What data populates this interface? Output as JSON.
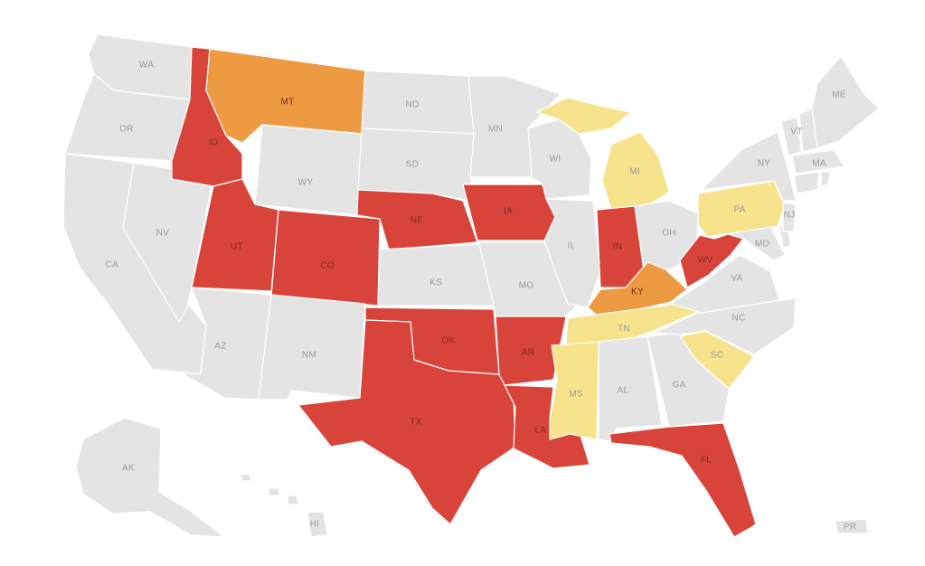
{
  "colors": {
    "red": "#d9443a",
    "orange": "#ee9a43",
    "yellow": "#f7e38c",
    "gray": "#e4e4e4",
    "border": "#ffffff"
  },
  "states": {
    "WA": {
      "label": "WA",
      "category": "gray"
    },
    "OR": {
      "label": "OR",
      "category": "gray"
    },
    "CA": {
      "label": "CA",
      "category": "gray"
    },
    "NV": {
      "label": "NV",
      "category": "gray"
    },
    "ID": {
      "label": "ID",
      "category": "red"
    },
    "MT": {
      "label": "MT",
      "category": "orange"
    },
    "WY": {
      "label": "WY",
      "category": "gray"
    },
    "UT": {
      "label": "UT",
      "category": "red"
    },
    "CO": {
      "label": "CO",
      "category": "red"
    },
    "AZ": {
      "label": "AZ",
      "category": "gray"
    },
    "NM": {
      "label": "NM",
      "category": "gray"
    },
    "ND": {
      "label": "ND",
      "category": "gray"
    },
    "SD": {
      "label": "SD",
      "category": "gray"
    },
    "NE": {
      "label": "NE",
      "category": "red"
    },
    "KS": {
      "label": "KS",
      "category": "gray"
    },
    "OK": {
      "label": "OK",
      "category": "red"
    },
    "TX": {
      "label": "TX",
      "category": "red"
    },
    "MN": {
      "label": "MN",
      "category": "gray"
    },
    "IA": {
      "label": "IA",
      "category": "red"
    },
    "MO": {
      "label": "MO",
      "category": "gray"
    },
    "AR": {
      "label": "AR",
      "category": "red"
    },
    "LA": {
      "label": "LA",
      "category": "red"
    },
    "WI": {
      "label": "WI",
      "category": "gray"
    },
    "IL": {
      "label": "IL",
      "category": "gray"
    },
    "MI": {
      "label": "MI",
      "category": "yellow"
    },
    "IN": {
      "label": "IN",
      "category": "red"
    },
    "OH": {
      "label": "OH",
      "category": "gray"
    },
    "KY": {
      "label": "KY",
      "category": "orange"
    },
    "TN": {
      "label": "TN",
      "category": "yellow"
    },
    "MS": {
      "label": "MS",
      "category": "yellow"
    },
    "AL": {
      "label": "AL",
      "category": "gray"
    },
    "GA": {
      "label": "GA",
      "category": "gray"
    },
    "FL": {
      "label": "FL",
      "category": "red"
    },
    "SC": {
      "label": "SC",
      "category": "yellow"
    },
    "NC": {
      "label": "NC",
      "category": "gray"
    },
    "VA": {
      "label": "VA",
      "category": "gray"
    },
    "WV": {
      "label": "WV",
      "category": "red"
    },
    "MD": {
      "label": "MD",
      "category": "gray"
    },
    "PA": {
      "label": "PA",
      "category": "yellow"
    },
    "NJ": {
      "label": "NJ",
      "category": "gray"
    },
    "NY": {
      "label": "NY",
      "category": "gray"
    },
    "VT": {
      "label": "VT",
      "category": "gray"
    },
    "MA": {
      "label": "MA",
      "category": "gray"
    },
    "ME": {
      "label": "ME",
      "category": "gray"
    },
    "NH": {
      "label": "NH",
      "category": "gray"
    },
    "CT": {
      "label": "CT",
      "category": "gray"
    },
    "RI": {
      "label": "RI",
      "category": "gray"
    },
    "DE": {
      "label": "DE",
      "category": "gray"
    },
    "AK": {
      "label": "AK",
      "category": "gray"
    },
    "HI": {
      "label": "HI",
      "category": "gray"
    },
    "PR": {
      "label": "PR",
      "category": "gray"
    }
  }
}
